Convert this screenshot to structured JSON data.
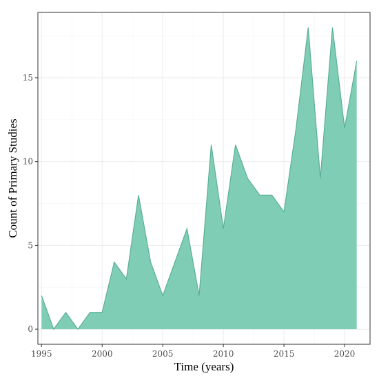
{
  "chart_data": {
    "type": "area",
    "title": "",
    "xlabel": "Time (years)",
    "ylabel": "Count of Primary Studies",
    "x": [
      1995,
      1996,
      1997,
      1998,
      1999,
      2000,
      2001,
      2002,
      2003,
      2004,
      2005,
      2006,
      2007,
      2008,
      2009,
      2010,
      2011,
      2012,
      2013,
      2014,
      2015,
      2016,
      2017,
      2018,
      2019,
      2020,
      2021
    ],
    "values": [
      2,
      0,
      1,
      0,
      1,
      1,
      4,
      3,
      8,
      4,
      2,
      4,
      6,
      2,
      11,
      6,
      11,
      9,
      8,
      8,
      7,
      12,
      18,
      9,
      18,
      12,
      16
    ],
    "xlim": [
      1994.7,
      2022.1
    ],
    "ylim": [
      -0.9,
      18.9
    ],
    "xticks": [
      1995,
      2000,
      2005,
      2010,
      2015,
      2020
    ],
    "yticks": [
      0,
      5,
      10,
      15
    ],
    "grid": true,
    "fill_color": "#7fcdb5",
    "line_color": "#5cae97",
    "border_color": "#333333"
  }
}
